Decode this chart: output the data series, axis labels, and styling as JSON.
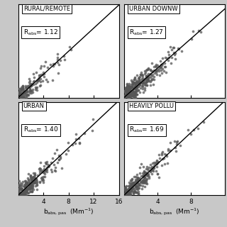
{
  "panels": [
    {
      "label": "RURAL/REMOTE",
      "r_abs": "1.12",
      "slope": 1.12,
      "xlim": [
        0,
        16
      ],
      "xticks": [
        4,
        8,
        12
      ],
      "ylim": [
        0,
        18
      ],
      "yticks": [],
      "n_points": 180,
      "x_scale": 2.0,
      "seed": 42
    },
    {
      "label": "URBAN DOWNW",
      "r_abs": "1.27",
      "slope": 1.27,
      "xlim": [
        0,
        12
      ],
      "xticks": [
        4,
        8
      ],
      "ylim": [
        0,
        16
      ],
      "yticks": [],
      "n_points": 400,
      "x_scale": 1.8,
      "seed": 7
    },
    {
      "label": "URBAN",
      "r_abs": "1.40",
      "slope": 1.4,
      "xlim": [
        0,
        16
      ],
      "xticks": [
        4,
        8,
        12
      ],
      "ylim": [
        0,
        22
      ],
      "yticks": [],
      "n_points": 320,
      "x_scale": 2.2,
      "seed": 123
    },
    {
      "label": "HEAVILY POLLU",
      "r_abs": "1.69",
      "slope": 1.69,
      "xlim": [
        0,
        12
      ],
      "xticks": [
        4,
        8
      ],
      "ylim": [
        0,
        20
      ],
      "yticks": [],
      "n_points": 300,
      "x_scale": 1.8,
      "seed": 99
    }
  ],
  "point_color": "#555555",
  "point_size": 7,
  "line_color": "#000000",
  "background": "#ffffff",
  "fig_bg": "#c8c8c8"
}
